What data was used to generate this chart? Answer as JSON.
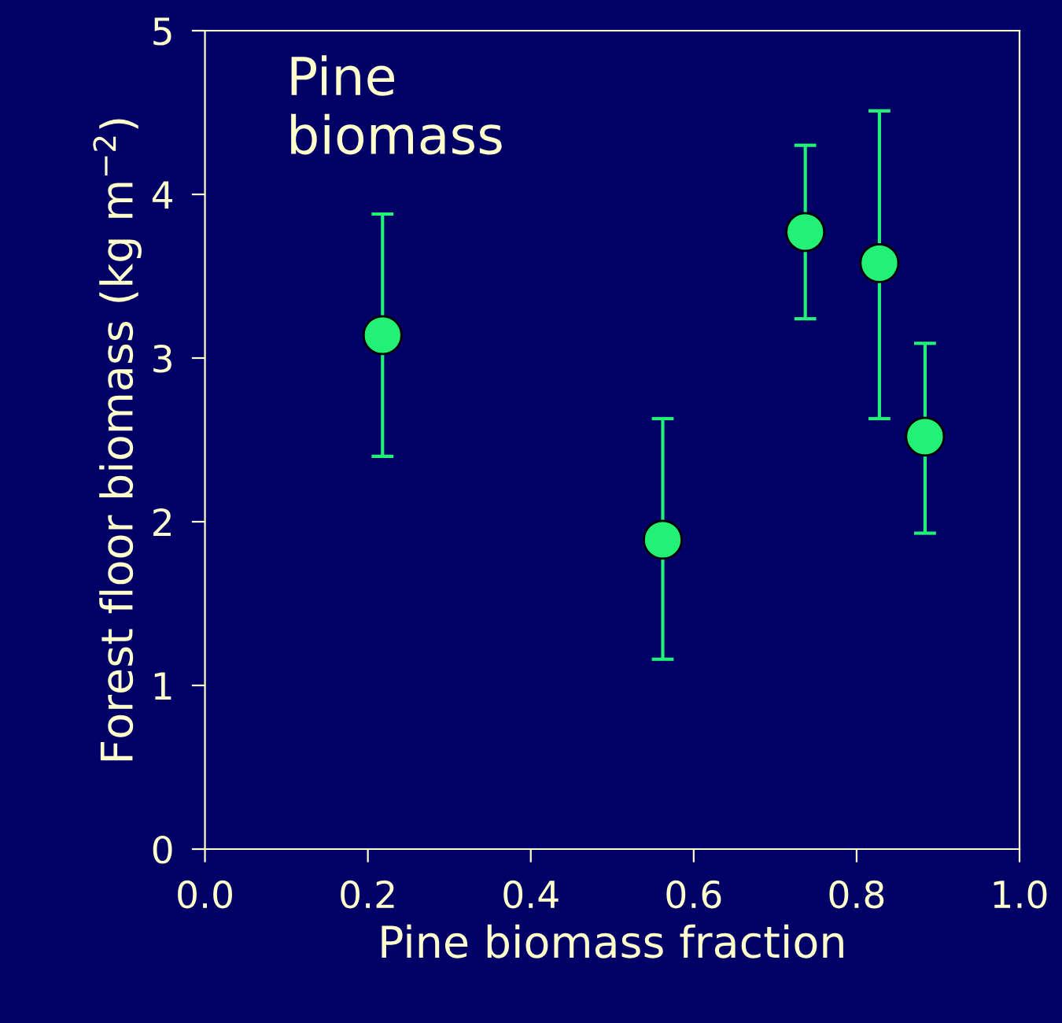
{
  "chart_data": {
    "type": "scatter",
    "xlabel": "Pine biomass fraction",
    "ylabel": "Forest floor biomass (kg m$^{−2}$)",
    "annotations": [
      "Pine\nbiomass"
    ],
    "x": [
      0.218,
      0.562,
      0.737,
      0.828,
      0.884
    ],
    "series": [
      {
        "color": "#22f077",
        "values": [
          3.14,
          1.89,
          3.77,
          3.58,
          2.52
        ],
        "errors": [
          [
            2.4,
            3.88
          ],
          [
            1.16,
            2.63
          ],
          [
            3.24,
            4.3
          ],
          [
            2.63,
            4.51
          ],
          [
            1.93,
            3.09
          ]
        ]
      }
    ],
    "xlim": [
      0.0,
      1.0
    ],
    "xticks": [
      {
        "value": 0,
        "label": "0.0"
      },
      0.2,
      0.4,
      0.6,
      0.8,
      {
        "value": 1,
        "label": "1.0"
      }
    ],
    "ylim": [
      0,
      5
    ],
    "yticks": [
      0,
      1,
      2,
      3,
      4,
      5
    ],
    "marker": "circle",
    "grid": false,
    "legend": false
  }
}
